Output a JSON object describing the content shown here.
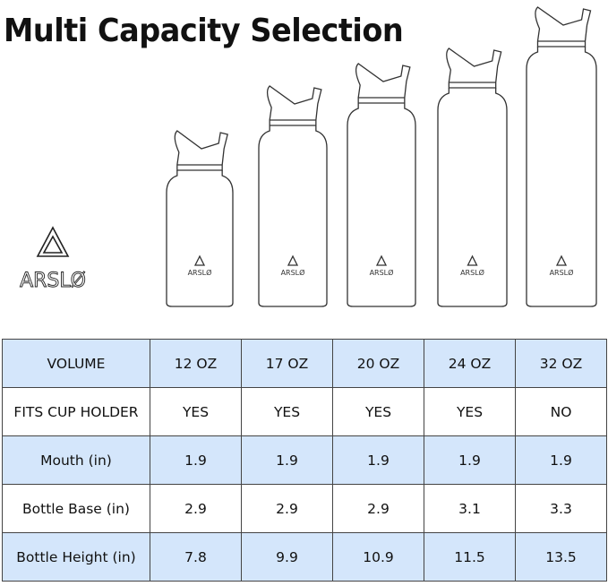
{
  "title": "Multi Capacity Selection",
  "brand": {
    "logo_text": "ARSLØ"
  },
  "bottles": [
    {
      "volume": "12 OZ",
      "logo_text": "ARSLØ"
    },
    {
      "volume": "17 OZ",
      "logo_text": "ARSLØ"
    },
    {
      "volume": "20 OZ",
      "logo_text": "ARSLØ"
    },
    {
      "volume": "24 OZ",
      "logo_text": "ARSLØ"
    },
    {
      "volume": "32 OZ",
      "logo_text": "ARSLØ"
    }
  ],
  "table": {
    "row_highlight_color": "#d4e6fb",
    "rows": [
      {
        "label": "VOLUME",
        "values": [
          "12 OZ",
          "17 OZ",
          "20 OZ",
          "24 OZ",
          "32 OZ"
        ],
        "highlight": true
      },
      {
        "label": "FITS CUP HOLDER",
        "values": [
          "YES",
          "YES",
          "YES",
          "YES",
          "NO"
        ],
        "highlight": false
      },
      {
        "label": "Mouth (in)",
        "values": [
          "1.9",
          "1.9",
          "1.9",
          "1.9",
          "1.9"
        ],
        "highlight": true
      },
      {
        "label": "Bottle Base (in)",
        "values": [
          "2.9",
          "2.9",
          "2.9",
          "3.1",
          "3.3"
        ],
        "highlight": false
      },
      {
        "label": "Bottle Height (in)",
        "values": [
          "7.8",
          "9.9",
          "10.9",
          "11.5",
          "13.5"
        ],
        "highlight": true
      }
    ]
  }
}
